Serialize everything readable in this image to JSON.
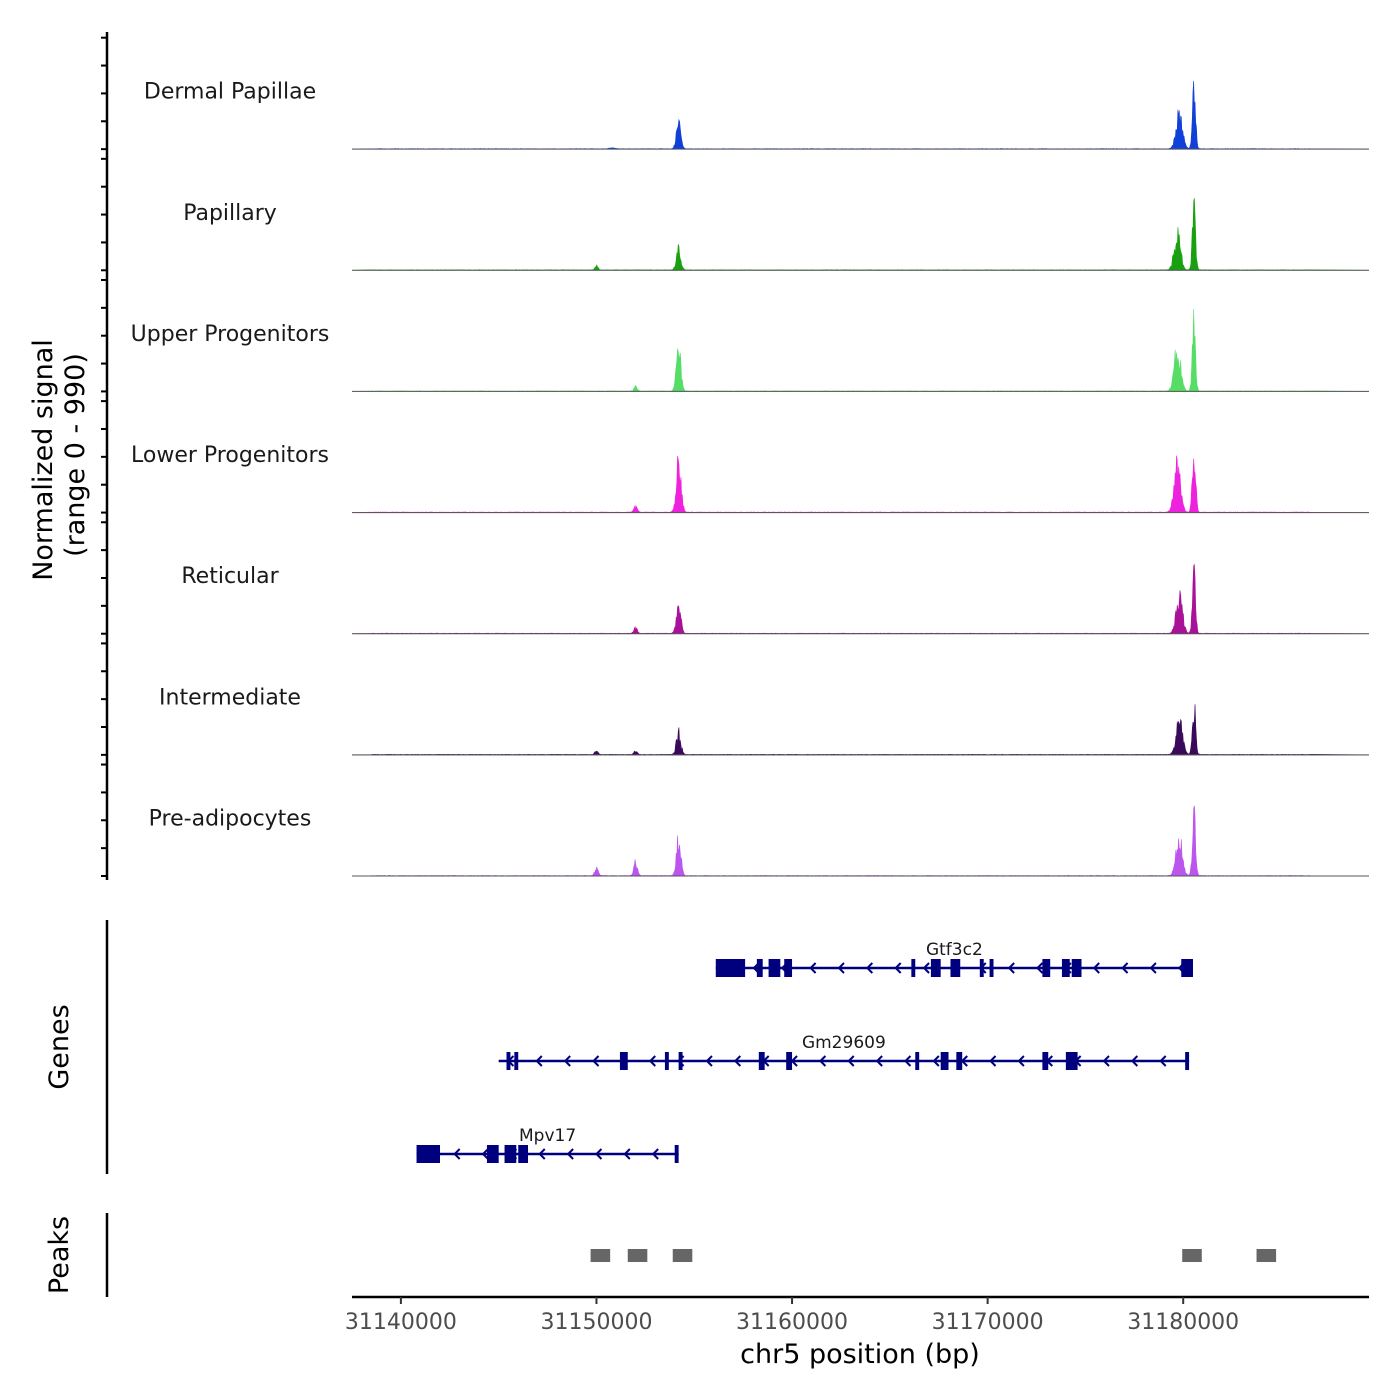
{
  "chart_data": {
    "type": "genome-track",
    "region": {
      "chrom": "chr5",
      "start": 31137500,
      "end": 31189500
    },
    "xlabel": "chr5 position (bp)",
    "x_ticks": [
      31140000,
      31150000,
      31160000,
      31170000,
      31180000
    ],
    "x_tick_labels": [
      "31140000",
      "31150000",
      "31160000",
      "31170000",
      "31180000"
    ],
    "signal_ylabel": [
      "Normalized signal",
      "(range 0 - 990)"
    ],
    "signal_range": [
      0,
      990
    ],
    "tracks": [
      {
        "name": "Dermal Papillae",
        "color": "#1040d8",
        "peaks": [
          [
            31150800,
            15,
            150
          ],
          [
            31154200,
            380,
            110
          ],
          [
            31179800,
            500,
            160
          ],
          [
            31180550,
            990,
            80
          ]
        ]
      },
      {
        "name": "Papillary",
        "color": "#18a010",
        "peaks": [
          [
            31150000,
            60,
            80
          ],
          [
            31154200,
            310,
            110
          ],
          [
            31179700,
            520,
            160
          ],
          [
            31180550,
            990,
            80
          ]
        ]
      },
      {
        "name": "Upper Progenitors",
        "color": "#55dd66",
        "peaks": [
          [
            31152000,
            70,
            80
          ],
          [
            31154200,
            650,
            110
          ],
          [
            31179700,
            650,
            160
          ],
          [
            31180550,
            990,
            80
          ]
        ]
      },
      {
        "name": "Lower Progenitors",
        "color": "#ee22dd",
        "peaks": [
          [
            31152000,
            90,
            90
          ],
          [
            31154200,
            760,
            120
          ],
          [
            31179700,
            700,
            160
          ],
          [
            31180550,
            990,
            80
          ]
        ]
      },
      {
        "name": "Reticular",
        "color": "#aa1199",
        "peaks": [
          [
            31152000,
            80,
            90
          ],
          [
            31154200,
            430,
            110
          ],
          [
            31179800,
            550,
            160
          ],
          [
            31180550,
            830,
            80
          ]
        ]
      },
      {
        "name": "Intermediate",
        "color": "#3a0a5a",
        "peaks": [
          [
            31150000,
            60,
            80
          ],
          [
            31152000,
            60,
            80
          ],
          [
            31154200,
            330,
            110
          ],
          [
            31179800,
            500,
            160
          ],
          [
            31180550,
            790,
            80
          ]
        ]
      },
      {
        "name": "Pre-adipocytes",
        "color": "#bb55ee",
        "peaks": [
          [
            31150000,
            110,
            90
          ],
          [
            31152000,
            200,
            90
          ],
          [
            31154200,
            580,
            110
          ],
          [
            31179800,
            550,
            160
          ],
          [
            31180550,
            990,
            80
          ]
        ]
      }
    ],
    "genes_label": "Genes",
    "gene_color": "#00007f",
    "genes": [
      {
        "name": "Gtf3c2",
        "start": 31156100,
        "end": 31180500,
        "strand": "-",
        "exons": [
          [
            31156100,
            31157600
          ],
          [
            31158200,
            31158500
          ],
          [
            31158800,
            31159400
          ],
          [
            31159600,
            31160000
          ],
          [
            31166100,
            31166300
          ],
          [
            31167100,
            31167600
          ],
          [
            31168100,
            31168600
          ],
          [
            31169600,
            31169800
          ],
          [
            31170100,
            31170300
          ],
          [
            31172800,
            31173200
          ],
          [
            31173800,
            31174200
          ],
          [
            31174300,
            31174800
          ],
          [
            31179900,
            31180500
          ]
        ]
      },
      {
        "name": "Gm29609",
        "start": 31145000,
        "end": 31180300,
        "strand": "-",
        "exons": [
          [
            31145400,
            31145600
          ],
          [
            31145800,
            31146000
          ],
          [
            31151200,
            31151600
          ],
          [
            31153500,
            31153700
          ],
          [
            31154200,
            31154400
          ],
          [
            31158300,
            31158600
          ],
          [
            31159700,
            31160000
          ],
          [
            31166300,
            31166500
          ],
          [
            31167600,
            31168000
          ],
          [
            31168400,
            31168700
          ],
          [
            31172800,
            31173100
          ],
          [
            31174000,
            31174600
          ],
          [
            31180100,
            31180300
          ]
        ]
      },
      {
        "name": "Mpv17",
        "start": 31140800,
        "end": 31154200,
        "strand": "-",
        "exons": [
          [
            31140800,
            31142000
          ],
          [
            31144400,
            31145000
          ],
          [
            31145300,
            31145900
          ],
          [
            31146000,
            31146500
          ],
          [
            31154000,
            31154200
          ]
        ]
      }
    ],
    "peaks_label": "Peaks",
    "peak_color": "#666666",
    "peak_regions": [
      [
        31149700,
        31150700
      ],
      [
        31151600,
        31152600
      ],
      [
        31153900,
        31154900
      ],
      [
        31179950,
        31180950
      ],
      [
        31183750,
        31184750
      ]
    ]
  }
}
